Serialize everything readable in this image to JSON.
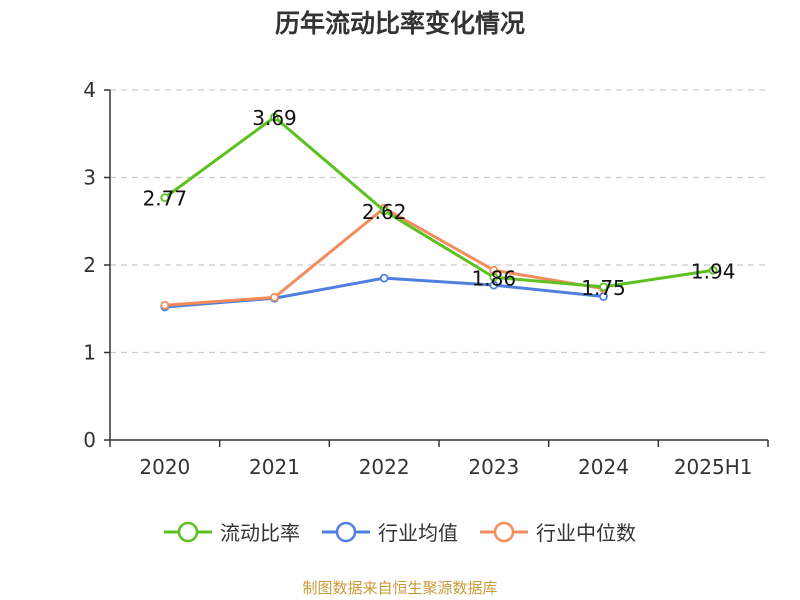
{
  "chart_data": {
    "type": "line",
    "title": "历年流动比率变化情况",
    "categories": [
      "2020",
      "2021",
      "2022",
      "2023",
      "2024",
      "2025H1"
    ],
    "ylim": [
      0,
      4
    ],
    "yticks": [
      "0",
      "1",
      "2",
      "3",
      "4"
    ],
    "grid": true,
    "legend_position": "bottom",
    "series": [
      {
        "name": "流动比率",
        "color": "#5cc11f",
        "values": [
          2.77,
          3.69,
          2.62,
          1.86,
          1.75,
          1.94
        ],
        "labels": [
          "2.77",
          "3.69",
          "2.62",
          "1.86",
          "1.75",
          "1.94"
        ]
      },
      {
        "name": "行业均值",
        "color": "#4f7fdf",
        "values": [
          1.52,
          1.62,
          1.85,
          1.77,
          1.64,
          null
        ]
      },
      {
        "name": "行业中位数",
        "color": "#f28c5a",
        "values": [
          1.54,
          1.63,
          2.65,
          1.94,
          1.73,
          null
        ]
      }
    ]
  },
  "source": "制图数据来自恒生聚源数据库"
}
